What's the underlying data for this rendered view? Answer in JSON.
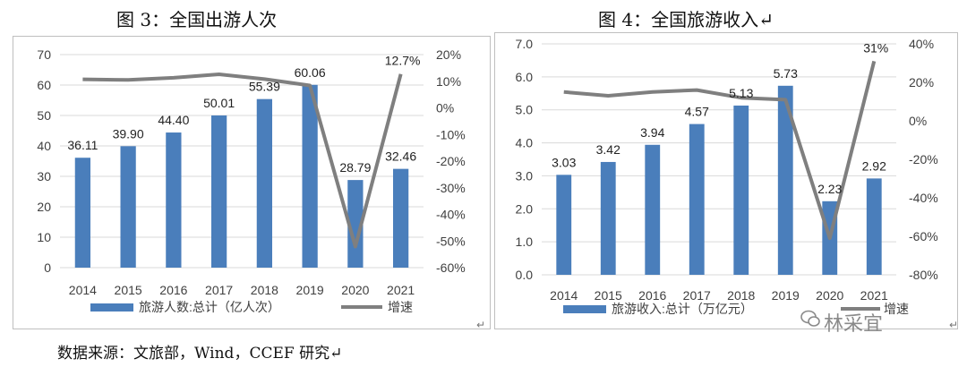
{
  "titles": {
    "left": "图 3：全国出游人次",
    "right": "图 4：全国旅游收入↵"
  },
  "footer": "数据来源：文旅部，Wind，CCEF 研究↵",
  "return_mark": "↵",
  "watermark": "林采宜",
  "colors": {
    "bar": "#4a7ebb",
    "line": "#7f7f7f",
    "grid": "#d9d9d9"
  },
  "chart_data": [
    {
      "type": "bar",
      "title": "图 3：全国出游人次",
      "categories": [
        "2014",
        "2015",
        "2016",
        "2017",
        "2018",
        "2019",
        "2020",
        "2021"
      ],
      "series": [
        {
          "name": "旅游人数:总计（亿人次）",
          "type": "bar",
          "axis": "left",
          "values": [
            36.11,
            39.9,
            44.4,
            50.01,
            55.39,
            60.06,
            28.79,
            32.46
          ],
          "labels": [
            "36.11",
            "39.90",
            "44.40",
            "50.01",
            "55.39",
            "60.06",
            "28.79",
            "32.46"
          ]
        },
        {
          "name": "增速",
          "type": "line",
          "axis": "right",
          "values": [
            10.7,
            10.5,
            11.3,
            12.6,
            10.8,
            8.4,
            -52.1,
            12.7
          ],
          "labels": [
            "",
            "",
            "",
            "",
            "",
            "",
            "",
            "12.7%"
          ]
        }
      ],
      "y_left": {
        "min": 0,
        "max": 70,
        "step": 10,
        "ticks": [
          "0",
          "10",
          "20",
          "30",
          "40",
          "50",
          "60",
          "70"
        ]
      },
      "y_right": {
        "min": -60,
        "max": 20,
        "step": 10,
        "ticks": [
          "-60%",
          "-50%",
          "-40%",
          "-30%",
          "-20%",
          "-10%",
          "0%",
          "10%",
          "20%"
        ]
      },
      "grid": true,
      "legend_position": "bottom"
    },
    {
      "type": "bar",
      "title": "图 4：全国旅游收入",
      "categories": [
        "2014",
        "2015",
        "2016",
        "2017",
        "2018",
        "2019",
        "2020",
        "2021"
      ],
      "series": [
        {
          "name": "旅游收入:总计（万亿元）",
          "type": "bar",
          "axis": "left",
          "values": [
            3.03,
            3.42,
            3.94,
            4.57,
            5.13,
            5.73,
            2.23,
            2.92
          ],
          "labels": [
            "3.03",
            "3.42",
            "3.94",
            "4.57",
            "5.13",
            "5.73",
            "2.23",
            "2.92"
          ]
        },
        {
          "name": "增速",
          "type": "line",
          "axis": "right",
          "values": [
            15,
            13,
            15,
            16,
            12,
            11,
            -61,
            31
          ],
          "labels": [
            "",
            "",
            "",
            "",
            "",
            "",
            "",
            "31%"
          ]
        }
      ],
      "y_left": {
        "min": 0,
        "max": 7,
        "step": 1,
        "ticks": [
          "0.0",
          "1.0",
          "2.0",
          "3.0",
          "4.0",
          "5.0",
          "6.0",
          "7.0"
        ]
      },
      "y_right": {
        "min": -80,
        "max": 40,
        "step": 20,
        "ticks": [
          "-80%",
          "-60%",
          "-40%",
          "-20%",
          "0%",
          "20%",
          "40%"
        ]
      },
      "grid": true,
      "legend_position": "bottom"
    }
  ]
}
